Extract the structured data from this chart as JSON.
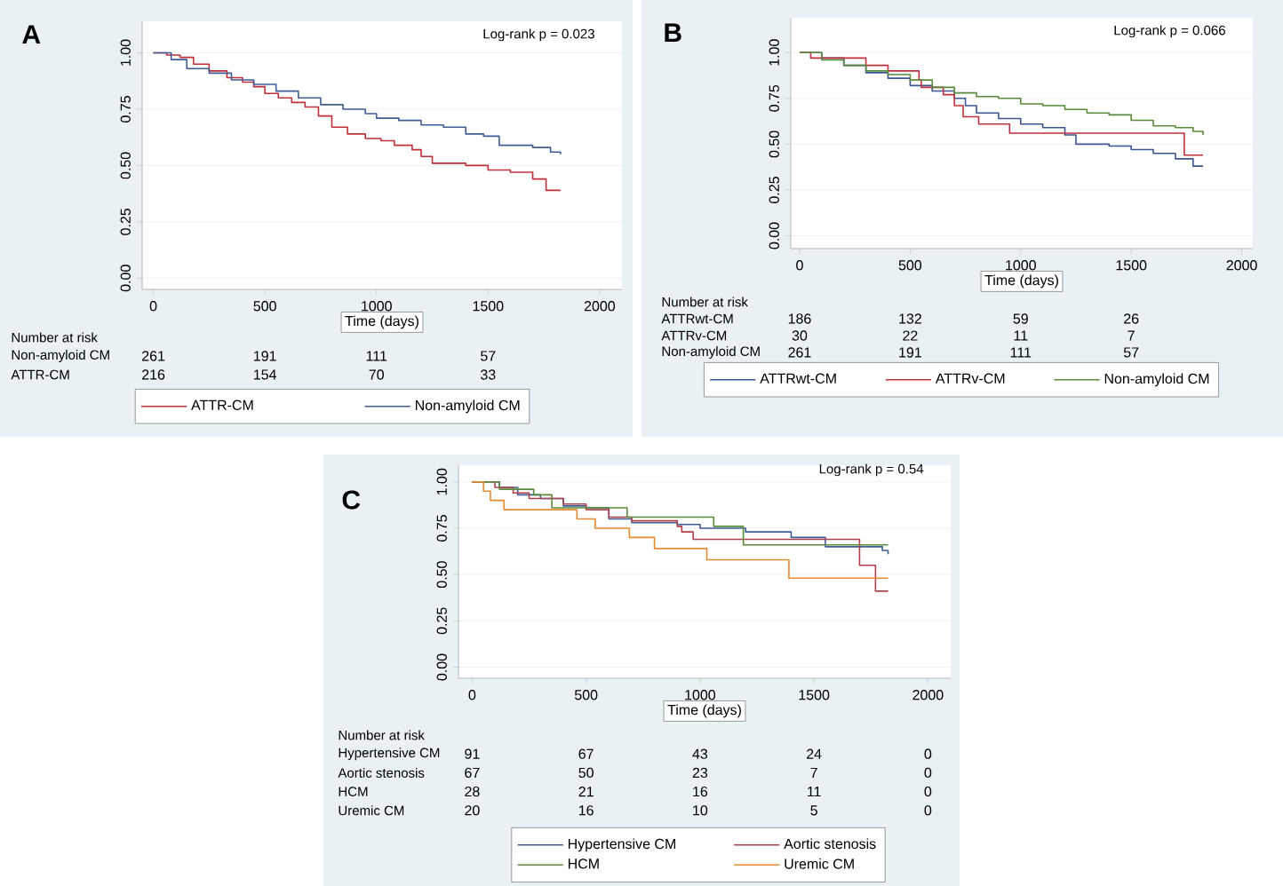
{
  "chart_data": [
    {
      "type": "step",
      "title": "A",
      "xlabel": "Time (days)",
      "xlim": [
        -50,
        2100
      ],
      "ylim": [
        -0.05,
        1.14
      ],
      "xticks": [
        0,
        500,
        1000,
        1500,
        2000
      ],
      "yticks": [
        {
          "value": 0,
          "label": "0.00"
        },
        {
          "value": 0.25,
          "label": "0.25"
        },
        {
          "value": 0.5,
          "label": "0.50"
        },
        {
          "value": 0.75,
          "label": "0.75"
        },
        {
          "value": 1,
          "label": "1.00"
        }
      ],
      "grid": "y",
      "legend": "bottom",
      "annotations": [
        "Log-rank p = 0.023",
        "Number at risk",
        "Non-amyloid CM",
        "261",
        "191",
        "111",
        "57",
        "ATTR-CM",
        "216",
        "154",
        "70",
        "33"
      ],
      "series": [
        {
          "name": "ATTR-CM",
          "color": "#c0303a",
          "x": [
            0,
            60,
            120,
            180,
            250,
            330,
            400,
            450,
            500,
            560,
            620,
            680,
            740,
            800,
            870,
            950,
            1020,
            1080,
            1160,
            1200,
            1250,
            1400,
            1500,
            1600,
            1700,
            1760,
            1825
          ],
          "values": [
            1,
            0.99,
            0.98,
            0.95,
            0.92,
            0.89,
            0.87,
            0.85,
            0.82,
            0.8,
            0.78,
            0.76,
            0.72,
            0.67,
            0.64,
            0.62,
            0.61,
            0.59,
            0.57,
            0.54,
            0.51,
            0.5,
            0.48,
            0.47,
            0.44,
            0.39,
            0.39
          ]
        },
        {
          "name": "Non-amyloid CM",
          "color": "#3f5d95",
          "x": [
            0,
            80,
            150,
            250,
            350,
            450,
            550,
            650,
            750,
            850,
            950,
            1000,
            1100,
            1200,
            1300,
            1400,
            1480,
            1550,
            1700,
            1780,
            1825
          ],
          "values": [
            1,
            0.97,
            0.93,
            0.91,
            0.88,
            0.86,
            0.83,
            0.8,
            0.77,
            0.75,
            0.73,
            0.71,
            0.7,
            0.68,
            0.67,
            0.64,
            0.63,
            0.59,
            0.58,
            0.56,
            0.55
          ]
        }
      ]
    },
    {
      "type": "step",
      "title": "B",
      "xlabel": "Time (days)",
      "xlim": [
        -40,
        2050
      ],
      "ylim": [
        -0.07,
        1.19
      ],
      "xticks": [
        0,
        500,
        1000,
        1500,
        2000
      ],
      "yticks": [
        {
          "value": 0,
          "label": "0.00"
        },
        {
          "value": 0.25,
          "label": "0.25"
        },
        {
          "value": 0.5,
          "label": "0.50"
        },
        {
          "value": 0.75,
          "label": "0.75"
        },
        {
          "value": 1,
          "label": "1.00"
        }
      ],
      "grid": "y",
      "legend": "bottom",
      "annotations": [
        "Log-rank p = 0.066",
        "Number at risk",
        "ATTRwt-CM",
        "186",
        "132",
        "59",
        "26",
        "ATTRv-CM",
        "30",
        "22",
        "11",
        "7",
        "Non-amyloid CM",
        "261",
        "191",
        "111",
        "57"
      ],
      "series": [
        {
          "name": "ATTRwt-CM",
          "color": "#3a5590",
          "x": [
            0,
            100,
            200,
            300,
            400,
            500,
            600,
            700,
            750,
            800,
            900,
            1000,
            1100,
            1200,
            1250,
            1400,
            1500,
            1600,
            1700,
            1780,
            1825
          ],
          "values": [
            1,
            0.97,
            0.93,
            0.89,
            0.86,
            0.82,
            0.79,
            0.75,
            0.71,
            0.67,
            0.64,
            0.61,
            0.59,
            0.55,
            0.5,
            0.49,
            0.47,
            0.45,
            0.42,
            0.38,
            0.38
          ]
        },
        {
          "name": "ATTRv-CM",
          "color": "#c0303a",
          "x": [
            0,
            50,
            300,
            400,
            540,
            550,
            650,
            700,
            740,
            810,
            950,
            1740,
            1825
          ],
          "values": [
            1,
            0.97,
            0.93,
            0.9,
            0.85,
            0.81,
            0.77,
            0.71,
            0.65,
            0.61,
            0.56,
            0.44,
            0.44
          ]
        },
        {
          "name": "Non-amyloid CM",
          "color": "#5a8a3a",
          "x": [
            0,
            100,
            200,
            300,
            400,
            500,
            600,
            700,
            800,
            900,
            1000,
            1100,
            1200,
            1300,
            1400,
            1500,
            1600,
            1700,
            1780,
            1825
          ],
          "values": [
            1,
            0.96,
            0.93,
            0.9,
            0.88,
            0.85,
            0.81,
            0.78,
            0.76,
            0.75,
            0.72,
            0.71,
            0.69,
            0.67,
            0.66,
            0.63,
            0.6,
            0.59,
            0.57,
            0.55
          ]
        }
      ]
    },
    {
      "type": "step",
      "title": "C",
      "xlabel": "Time (days)",
      "xlim": [
        -60,
        2100
      ],
      "ylim": [
        -0.06,
        1.09
      ],
      "xticks": [
        0,
        500,
        1000,
        1500,
        2000
      ],
      "yticks": [
        {
          "value": 0,
          "label": "0.00"
        },
        {
          "value": 0.25,
          "label": "0.25"
        },
        {
          "value": 0.5,
          "label": "0.50"
        },
        {
          "value": 0.75,
          "label": "0.75"
        },
        {
          "value": 1,
          "label": "1.00"
        }
      ],
      "grid": "y",
      "legend": "bottom",
      "annotations": [
        "Log-rank p = 0.54",
        "Number at risk",
        "Hypertensive CM",
        "91",
        "67",
        "43",
        "24",
        "0",
        "Aortic stenosis",
        "67",
        "50",
        "23",
        "7",
        "0",
        "HCM",
        "28",
        "21",
        "16",
        "11",
        "0",
        "Uremic CM",
        "20",
        "16",
        "10",
        "5",
        "0"
      ],
      "series": [
        {
          "name": "Hypertensive CM",
          "color": "#3f5d95",
          "x": [
            0,
            120,
            200,
            300,
            400,
            500,
            600,
            700,
            900,
            1000,
            1200,
            1400,
            1550,
            1800,
            1825
          ],
          "values": [
            1,
            0.97,
            0.93,
            0.91,
            0.87,
            0.86,
            0.8,
            0.78,
            0.77,
            0.75,
            0.73,
            0.7,
            0.65,
            0.63,
            0.61
          ]
        },
        {
          "name": "Aortic stenosis",
          "color": "#b0404a",
          "x": [
            0,
            100,
            180,
            250,
            400,
            500,
            600,
            700,
            900,
            920,
            970,
            1700,
            1770,
            1825
          ],
          "values": [
            1,
            0.97,
            0.94,
            0.91,
            0.88,
            0.85,
            0.81,
            0.79,
            0.76,
            0.73,
            0.69,
            0.55,
            0.41,
            0.41
          ]
        },
        {
          "name": "HCM",
          "color": "#5a8a3a",
          "x": [
            0,
            120,
            270,
            350,
            680,
            1060,
            1190,
            1825
          ],
          "values": [
            1,
            0.96,
            0.93,
            0.86,
            0.81,
            0.76,
            0.66,
            0.66
          ]
        },
        {
          "name": "Uremic CM",
          "color": "#e88a30",
          "x": [
            0,
            50,
            80,
            140,
            460,
            540,
            690,
            800,
            1030,
            1390,
            1825
          ],
          "values": [
            1,
            0.95,
            0.9,
            0.85,
            0.8,
            0.75,
            0.7,
            0.64,
            0.58,
            0.48,
            0.48
          ]
        }
      ]
    }
  ]
}
